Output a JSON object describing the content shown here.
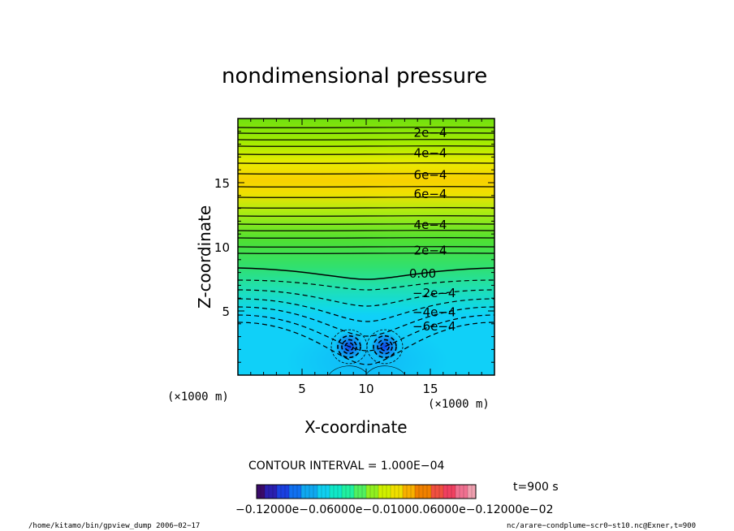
{
  "chart_data": {
    "type": "contour",
    "title": "nondimensional pressure",
    "xlabel": "X-coordinate",
    "ylabel": "Z-coordinate",
    "x_unit": "(×1000 m)",
    "y_unit": "(×1000 m)",
    "xlim": [
      0,
      20
    ],
    "ylim": [
      0,
      20
    ],
    "x_ticks": [
      5,
      10,
      15
    ],
    "y_ticks": [
      5,
      10,
      15
    ],
    "contour_interval_text": "CONTOUR INTERVAL = 1.000E−04",
    "contour_labels": [
      {
        "text": "2e−4",
        "x": 15.0,
        "z": 18.9
      },
      {
        "text": "4e−4",
        "x": 15.0,
        "z": 17.3
      },
      {
        "text": "6e−4",
        "x": 15.0,
        "z": 15.6
      },
      {
        "text": "6e−4",
        "x": 15.0,
        "z": 14.1
      },
      {
        "text": "4e−4",
        "x": 15.0,
        "z": 11.7
      },
      {
        "text": "2e−4",
        "x": 15.0,
        "z": 9.7
      },
      {
        "text": "0.00",
        "x": 14.4,
        "z": 7.9
      },
      {
        "text": "−2e−4",
        "x": 15.3,
        "z": 6.4
      },
      {
        "text": "−4e−4",
        "x": 15.3,
        "z": 4.9
      },
      {
        "text": "−6e−4",
        "x": 15.3,
        "z": 3.8
      }
    ],
    "colorbar": {
      "min": -0.0012,
      "max": 0.0012,
      "tick_labels_text": "−0.12000e−0.06000e−0.01000.06000e−0.12000e−02",
      "colors": [
        "#3a0a6a",
        "#2a1fb0",
        "#1a40e0",
        "#1070f0",
        "#10a8f0",
        "#10d0f0",
        "#10e8c8",
        "#20f0a0",
        "#50f060",
        "#90f020",
        "#d0f000",
        "#f0e000",
        "#f8b000",
        "#f08000",
        "#f05040",
        "#f04060",
        "#f07090",
        "#f0a0b0"
      ]
    },
    "annotations": {
      "time": "t=900 s",
      "footer_left": "/home/kitamo/bin/gpview_dump   2006−02−17",
      "footer_right": "nc/arare−condplume−scr0−st10.nc@Exner,t=900"
    }
  }
}
